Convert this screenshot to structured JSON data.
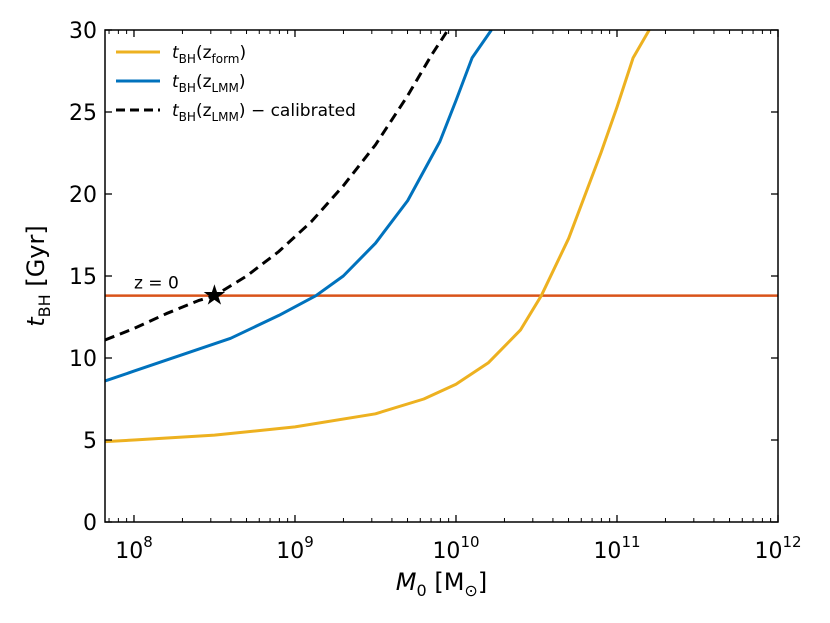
{
  "chart_data": {
    "type": "line",
    "title": "",
    "xlabel": {
      "main": "M",
      "sub": "0",
      "unit_open": " [M",
      "unit_sub": "⊙",
      "unit_close": "]"
    },
    "ylabel": {
      "main": "t",
      "sub": "BH",
      "unit": " [Gyr]"
    },
    "xscale": "log",
    "xlim_log10": [
      7.82,
      12
    ],
    "ylim": [
      0,
      30
    ],
    "x_ticks": [
      {
        "exp": 8,
        "base": "10",
        "sup": "8"
      },
      {
        "exp": 9,
        "base": "10",
        "sup": "9"
      },
      {
        "exp": 10,
        "base": "10",
        "sup": "10"
      },
      {
        "exp": 11,
        "base": "10",
        "sup": "11"
      },
      {
        "exp": 12,
        "base": "10",
        "sup": "12"
      }
    ],
    "y_ticks": [
      0,
      5,
      10,
      15,
      20,
      25,
      30
    ],
    "grid": false,
    "legend_position": "top-left",
    "series": [
      {
        "name": "t_BH(z_form)",
        "label_main": "t",
        "label_sub1": "BH",
        "label_mid": "(z",
        "label_sub2": "form",
        "label_end": ")",
        "color": "#edb120",
        "style": "solid",
        "log10_x": [
          7.82,
          8.0,
          8.5,
          9.0,
          9.5,
          9.8,
          10.0,
          10.2,
          10.4,
          10.53,
          10.7,
          10.9,
          11.0,
          11.1,
          11.2
        ],
        "y": [
          4.9,
          5.0,
          5.3,
          5.8,
          6.6,
          7.5,
          8.4,
          9.7,
          11.7,
          13.8,
          17.3,
          22.5,
          25.3,
          28.3,
          30.0
        ]
      },
      {
        "name": "t_BH(z_LMM)",
        "label_main": "t",
        "label_sub1": "BH",
        "label_mid": "(z",
        "label_sub2": "LMM",
        "label_end": ")",
        "color": "#0072bd",
        "style": "solid",
        "log10_x": [
          7.82,
          8.0,
          8.3,
          8.6,
          8.9,
          9.13,
          9.3,
          9.5,
          9.7,
          9.9,
          10.0,
          10.1,
          10.22
        ],
        "y": [
          8.6,
          9.2,
          10.2,
          11.2,
          12.6,
          13.8,
          15.0,
          17.0,
          19.6,
          23.2,
          25.7,
          28.3,
          30.0
        ]
      },
      {
        "name": "t_BH(z_LMM) - calibrated",
        "label_main": "t",
        "label_sub1": "BH",
        "label_mid": "(z",
        "label_sub2": "LMM",
        "label_end": ") − calibrated",
        "color": "#000000",
        "style": "dashed",
        "log10_x": [
          7.82,
          8.0,
          8.2,
          8.4,
          8.5,
          8.7,
          8.9,
          9.1,
          9.3,
          9.5,
          9.7,
          9.85,
          9.95
        ],
        "y": [
          11.1,
          11.8,
          12.7,
          13.5,
          13.8,
          15.0,
          16.5,
          18.3,
          20.5,
          23.0,
          26.0,
          28.5,
          30.0
        ]
      }
    ],
    "hline": {
      "y": 13.8,
      "color": "#d95319",
      "label": "z = 0",
      "label_log10_x": 8.0
    },
    "marker": {
      "log10_x": 8.5,
      "y": 13.8,
      "symbol": "★"
    }
  }
}
